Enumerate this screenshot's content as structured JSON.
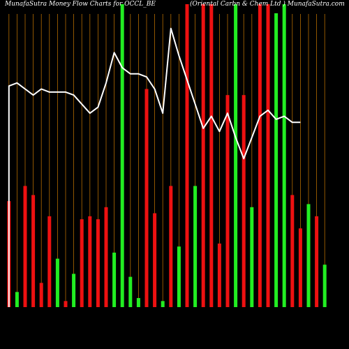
{
  "header": {
    "left_title": "MunafaSutra  Money  Flow  Charts for  OCCL_BE",
    "right_title": "(Oriental  Carbn  &  Chem Ltd )  MunafaSutra.com"
  },
  "colors": {
    "background": "#000000",
    "grid": "#b36b00",
    "up": "#22ee22",
    "down": "#ee1111",
    "line": "#ffffff"
  },
  "chart_data": {
    "type": "bar",
    "series": [
      {
        "values": [
          35,
          5,
          40,
          37,
          8,
          30,
          16,
          2,
          11,
          29,
          30,
          29,
          33,
          18,
          100,
          10,
          3,
          72,
          31,
          2,
          40,
          20,
          100,
          40,
          100,
          100,
          21,
          70,
          100,
          70,
          33,
          100,
          100,
          97,
          100,
          37,
          26,
          34,
          30,
          14
        ],
        "colors": [
          "down",
          "up",
          "down",
          "down",
          "down",
          "down",
          "up",
          "down",
          "up",
          "down",
          "down",
          "down",
          "down",
          "up",
          "up",
          "up",
          "up",
          "down",
          "down",
          "up",
          "down",
          "up",
          "down",
          "up",
          "down",
          "down",
          "down",
          "down",
          "up",
          "down",
          "up",
          "down",
          "down",
          "up",
          "up",
          "down",
          "down",
          "up",
          "down",
          "up"
        ]
      },
      {
        "type": "line",
        "values": [
          73,
          74,
          72,
          70,
          72,
          71,
          71,
          71,
          70,
          67,
          64,
          66,
          74,
          84,
          79,
          77,
          77,
          76,
          72,
          64,
          92,
          83,
          75,
          67,
          59,
          63,
          58,
          64,
          56,
          49,
          56,
          63,
          65,
          62,
          63,
          61,
          61
        ]
      }
    ],
    "ylim": [
      0,
      100
    ],
    "grid": true
  }
}
